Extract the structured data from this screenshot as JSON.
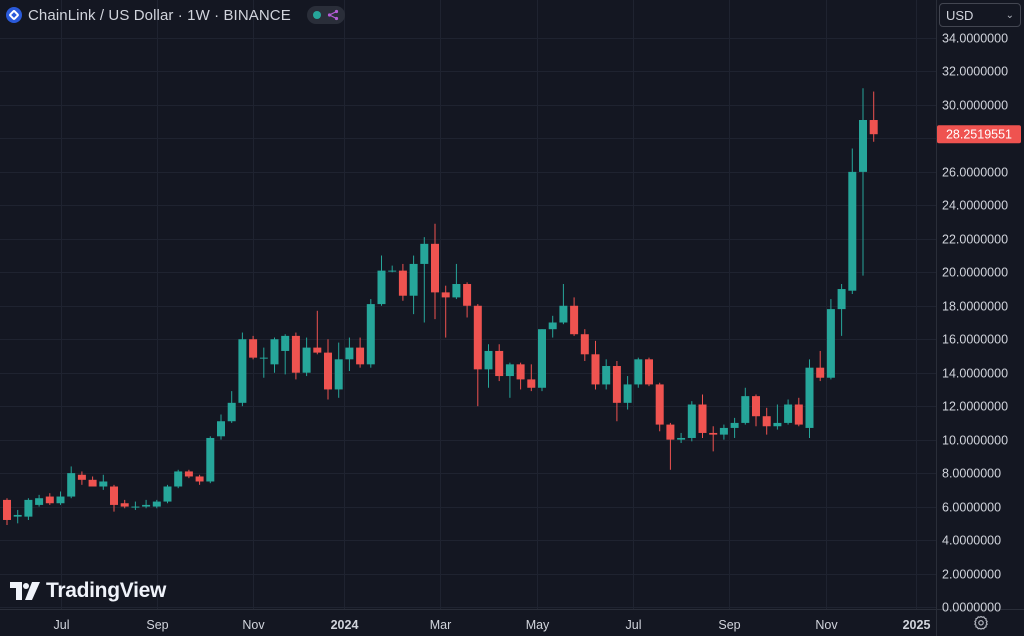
{
  "header": {
    "title": "ChainLink / US Dollar · 1W · BINANCE"
  },
  "currency": {
    "selected": "USD"
  },
  "watermark": {
    "text": "TradingView"
  },
  "colors": {
    "background": "#141722",
    "up": "#26a69a",
    "down": "#ef5350",
    "grid": "#1f2330",
    "axis_text": "#d1d4dc"
  },
  "icons": {
    "symbol": "chainlink-logo-icon",
    "status": "market-status-dot-icon",
    "share": "share-network-icon",
    "dropdown": "chevron-down-icon",
    "brand": "tradingview-logo-icon",
    "settings": "gear-icon"
  },
  "chart_data": {
    "type": "candlestick",
    "title": "",
    "interval": "1W",
    "ylim": [
      0,
      35
    ],
    "y_ticks": [
      "0.0000000",
      "2.0000000",
      "4.0000000",
      "6.0000000",
      "8.0000000",
      "10.0000000",
      "12.0000000",
      "14.0000000",
      "16.0000000",
      "18.0000000",
      "20.0000000",
      "22.0000000",
      "24.0000000",
      "26.0000000",
      "28.0000000",
      "30.0000000",
      "32.0000000",
      "34.0000000"
    ],
    "x_ticks": [
      {
        "label": "Jul",
        "index": 5,
        "bold": false
      },
      {
        "label": "Sep",
        "index": 14,
        "bold": false
      },
      {
        "label": "Nov",
        "index": 23,
        "bold": false
      },
      {
        "label": "2024",
        "index": 31.5,
        "bold": true
      },
      {
        "label": "Mar",
        "index": 40.5,
        "bold": false
      },
      {
        "label": "May",
        "index": 49.5,
        "bold": false
      },
      {
        "label": "Jul",
        "index": 58.5,
        "bold": false
      },
      {
        "label": "Sep",
        "index": 67.5,
        "bold": false
      },
      {
        "label": "Nov",
        "index": 76.5,
        "bold": false
      },
      {
        "label": "2025",
        "index": 85,
        "bold": true
      }
    ],
    "last_price": {
      "value": 28.2519551,
      "label": "28.2519551"
    },
    "candles": [
      {
        "o": 6.4,
        "h": 6.5,
        "l": 4.9,
        "c": 5.2
      },
      {
        "o": 5.4,
        "h": 5.8,
        "l": 5.0,
        "c": 5.5
      },
      {
        "o": 5.4,
        "h": 6.5,
        "l": 5.2,
        "c": 6.4
      },
      {
        "o": 6.1,
        "h": 6.7,
        "l": 6.0,
        "c": 6.5
      },
      {
        "o": 6.6,
        "h": 6.8,
        "l": 6.1,
        "c": 6.2
      },
      {
        "o": 6.2,
        "h": 6.9,
        "l": 6.1,
        "c": 6.6
      },
      {
        "o": 6.6,
        "h": 8.4,
        "l": 6.5,
        "c": 8.0
      },
      {
        "o": 7.9,
        "h": 8.1,
        "l": 7.3,
        "c": 7.6
      },
      {
        "o": 7.6,
        "h": 7.8,
        "l": 7.2,
        "c": 7.2
      },
      {
        "o": 7.2,
        "h": 7.9,
        "l": 7.0,
        "c": 7.5
      },
      {
        "o": 7.2,
        "h": 7.3,
        "l": 5.7,
        "c": 6.1
      },
      {
        "o": 6.2,
        "h": 6.4,
        "l": 5.9,
        "c": 6.0
      },
      {
        "o": 6.0,
        "h": 6.3,
        "l": 5.8,
        "c": 6.0
      },
      {
        "o": 6.0,
        "h": 6.4,
        "l": 5.9,
        "c": 6.1
      },
      {
        "o": 6.0,
        "h": 6.4,
        "l": 5.9,
        "c": 6.3
      },
      {
        "o": 6.3,
        "h": 7.3,
        "l": 6.2,
        "c": 7.2
      },
      {
        "o": 7.2,
        "h": 8.2,
        "l": 7.1,
        "c": 8.1
      },
      {
        "o": 8.1,
        "h": 8.2,
        "l": 7.7,
        "c": 7.8
      },
      {
        "o": 7.8,
        "h": 7.9,
        "l": 7.3,
        "c": 7.5
      },
      {
        "o": 7.5,
        "h": 10.2,
        "l": 7.4,
        "c": 10.1
      },
      {
        "o": 10.2,
        "h": 11.5,
        "l": 10.0,
        "c": 11.1
      },
      {
        "o": 11.1,
        "h": 12.9,
        "l": 11.0,
        "c": 12.2
      },
      {
        "o": 12.2,
        "h": 16.4,
        "l": 12.0,
        "c": 16.0
      },
      {
        "o": 16.0,
        "h": 16.2,
        "l": 14.8,
        "c": 14.9
      },
      {
        "o": 14.9,
        "h": 15.5,
        "l": 13.7,
        "c": 14.9
      },
      {
        "o": 14.5,
        "h": 16.1,
        "l": 14.0,
        "c": 16.0
      },
      {
        "o": 15.3,
        "h": 16.3,
        "l": 13.9,
        "c": 16.2
      },
      {
        "o": 16.2,
        "h": 16.4,
        "l": 13.6,
        "c": 14.0
      },
      {
        "o": 14.0,
        "h": 16.1,
        "l": 13.8,
        "c": 15.5
      },
      {
        "o": 15.5,
        "h": 17.7,
        "l": 15.1,
        "c": 15.2
      },
      {
        "o": 15.2,
        "h": 16.0,
        "l": 12.4,
        "c": 13.0
      },
      {
        "o": 13.0,
        "h": 15.8,
        "l": 12.5,
        "c": 14.8
      },
      {
        "o": 14.8,
        "h": 16.1,
        "l": 14.1,
        "c": 15.5
      },
      {
        "o": 15.5,
        "h": 16.1,
        "l": 14.3,
        "c": 14.5
      },
      {
        "o": 14.5,
        "h": 18.4,
        "l": 14.3,
        "c": 18.1
      },
      {
        "o": 18.1,
        "h": 21.0,
        "l": 18.0,
        "c": 20.1
      },
      {
        "o": 20.1,
        "h": 20.4,
        "l": 20.0,
        "c": 20.1
      },
      {
        "o": 20.1,
        "h": 20.5,
        "l": 18.3,
        "c": 18.6
      },
      {
        "o": 18.6,
        "h": 21.0,
        "l": 17.5,
        "c": 20.5
      },
      {
        "o": 20.5,
        "h": 22.1,
        "l": 17.0,
        "c": 21.7
      },
      {
        "o": 21.7,
        "h": 22.9,
        "l": 17.2,
        "c": 18.8
      },
      {
        "o": 18.8,
        "h": 19.2,
        "l": 16.1,
        "c": 18.5
      },
      {
        "o": 18.5,
        "h": 20.5,
        "l": 18.4,
        "c": 19.3
      },
      {
        "o": 19.3,
        "h": 19.4,
        "l": 17.3,
        "c": 18.0
      },
      {
        "o": 18.0,
        "h": 18.1,
        "l": 12.0,
        "c": 14.2
      },
      {
        "o": 14.2,
        "h": 15.7,
        "l": 13.1,
        "c": 15.3
      },
      {
        "o": 15.3,
        "h": 15.7,
        "l": 13.5,
        "c": 13.8
      },
      {
        "o": 13.8,
        "h": 14.6,
        "l": 12.5,
        "c": 14.5
      },
      {
        "o": 14.5,
        "h": 14.6,
        "l": 13.0,
        "c": 13.6
      },
      {
        "o": 13.6,
        "h": 14.5,
        "l": 12.9,
        "c": 13.1
      },
      {
        "o": 13.1,
        "h": 16.6,
        "l": 12.9,
        "c": 16.6
      },
      {
        "o": 16.6,
        "h": 17.4,
        "l": 16.1,
        "c": 17.0
      },
      {
        "o": 17.0,
        "h": 19.3,
        "l": 16.9,
        "c": 18.0
      },
      {
        "o": 18.0,
        "h": 18.5,
        "l": 16.2,
        "c": 16.3
      },
      {
        "o": 16.3,
        "h": 16.6,
        "l": 14.7,
        "c": 15.1
      },
      {
        "o": 15.1,
        "h": 15.9,
        "l": 13.0,
        "c": 13.3
      },
      {
        "o": 13.3,
        "h": 14.8,
        "l": 13.0,
        "c": 14.4
      },
      {
        "o": 14.4,
        "h": 14.7,
        "l": 11.1,
        "c": 12.2
      },
      {
        "o": 12.2,
        "h": 13.8,
        "l": 11.8,
        "c": 13.3
      },
      {
        "o": 13.3,
        "h": 14.9,
        "l": 13.1,
        "c": 14.8
      },
      {
        "o": 14.8,
        "h": 14.9,
        "l": 13.2,
        "c": 13.3
      },
      {
        "o": 13.3,
        "h": 13.4,
        "l": 10.5,
        "c": 10.9
      },
      {
        "o": 10.9,
        "h": 11.0,
        "l": 8.2,
        "c": 10.0
      },
      {
        "o": 10.0,
        "h": 10.4,
        "l": 9.8,
        "c": 10.1
      },
      {
        "o": 10.1,
        "h": 12.3,
        "l": 9.9,
        "c": 12.1
      },
      {
        "o": 12.1,
        "h": 12.7,
        "l": 10.1,
        "c": 10.4
      },
      {
        "o": 10.4,
        "h": 10.8,
        "l": 9.3,
        "c": 10.3
      },
      {
        "o": 10.3,
        "h": 10.9,
        "l": 10.0,
        "c": 10.7
      },
      {
        "o": 10.7,
        "h": 11.3,
        "l": 10.1,
        "c": 11.0
      },
      {
        "o": 11.0,
        "h": 13.1,
        "l": 10.9,
        "c": 12.6
      },
      {
        "o": 12.6,
        "h": 12.7,
        "l": 10.8,
        "c": 11.4
      },
      {
        "o": 11.4,
        "h": 11.9,
        "l": 10.3,
        "c": 10.8
      },
      {
        "o": 10.8,
        "h": 12.1,
        "l": 10.6,
        "c": 11.0
      },
      {
        "o": 11.0,
        "h": 12.4,
        "l": 10.9,
        "c": 12.1
      },
      {
        "o": 12.1,
        "h": 12.5,
        "l": 10.8,
        "c": 10.9
      },
      {
        "o": 10.7,
        "h": 14.8,
        "l": 10.1,
        "c": 14.3
      },
      {
        "o": 14.3,
        "h": 15.3,
        "l": 13.5,
        "c": 13.7
      },
      {
        "o": 13.7,
        "h": 18.4,
        "l": 13.6,
        "c": 17.8
      },
      {
        "o": 17.8,
        "h": 19.3,
        "l": 16.2,
        "c": 19.0
      },
      {
        "o": 18.9,
        "h": 27.4,
        "l": 18.7,
        "c": 26.0
      },
      {
        "o": 26.0,
        "h": 31.0,
        "l": 19.8,
        "c": 29.1
      },
      {
        "o": 29.1,
        "h": 30.8,
        "l": 27.8,
        "c": 28.2519551
      }
    ]
  }
}
